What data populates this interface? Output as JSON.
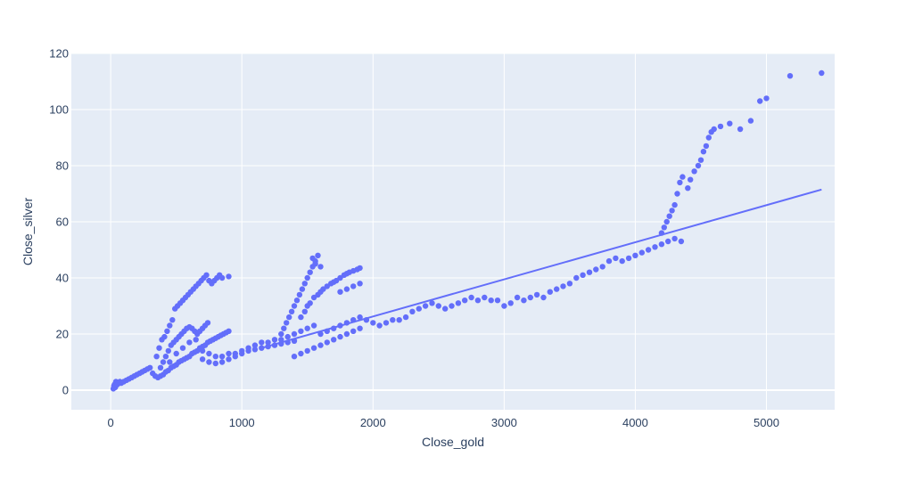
{
  "chart_data": {
    "type": "scatter",
    "xlabel": "Close_gold",
    "ylabel": "Close_silver",
    "xlim": [
      -300,
      5520
    ],
    "ylim": [
      -7,
      120
    ],
    "xticks": [
      "0",
      "1000",
      "2000",
      "3000",
      "4000",
      "5000"
    ],
    "yticks": [
      "0",
      "20",
      "40",
      "60",
      "80",
      "100",
      "120"
    ],
    "grid": true,
    "colors": {
      "background": "#e5ecf6",
      "grid": "#ffffff",
      "marker": "#636efa",
      "line": "#636efa",
      "text": "#2a3f5f"
    },
    "series": [
      {
        "type": "scatter",
        "points": [
          [
            20,
            0.5
          ],
          [
            25,
            1.5
          ],
          [
            30,
            2
          ],
          [
            35,
            1
          ],
          [
            40,
            3
          ],
          [
            50,
            2
          ],
          [
            60,
            2.5
          ],
          [
            70,
            3
          ],
          [
            80,
            2.5
          ],
          [
            100,
            3
          ],
          [
            120,
            3.5
          ],
          [
            140,
            4
          ],
          [
            160,
            4.5
          ],
          [
            180,
            5
          ],
          [
            200,
            5.5
          ],
          [
            220,
            6
          ],
          [
            240,
            6.5
          ],
          [
            260,
            7
          ],
          [
            280,
            7.5
          ],
          [
            300,
            8
          ],
          [
            320,
            6
          ],
          [
            340,
            5
          ],
          [
            360,
            4.5
          ],
          [
            380,
            5
          ],
          [
            400,
            5.5
          ],
          [
            420,
            6.5
          ],
          [
            440,
            7
          ],
          [
            460,
            8
          ],
          [
            480,
            8.5
          ],
          [
            500,
            9
          ],
          [
            520,
            10
          ],
          [
            540,
            10.5
          ],
          [
            560,
            11
          ],
          [
            580,
            11.5
          ],
          [
            600,
            12
          ],
          [
            620,
            13
          ],
          [
            640,
            13.5
          ],
          [
            660,
            14
          ],
          [
            680,
            15
          ],
          [
            700,
            15.5
          ],
          [
            720,
            16
          ],
          [
            740,
            17
          ],
          [
            760,
            17.5
          ],
          [
            780,
            18
          ],
          [
            800,
            18.5
          ],
          [
            820,
            19
          ],
          [
            840,
            19.5
          ],
          [
            860,
            20
          ],
          [
            880,
            20.5
          ],
          [
            900,
            21
          ],
          [
            350,
            12
          ],
          [
            370,
            15
          ],
          [
            390,
            18
          ],
          [
            410,
            19
          ],
          [
            430,
            21
          ],
          [
            450,
            23
          ],
          [
            470,
            25
          ],
          [
            490,
            29
          ],
          [
            510,
            30
          ],
          [
            530,
            31
          ],
          [
            550,
            32
          ],
          [
            570,
            33
          ],
          [
            590,
            34
          ],
          [
            610,
            35
          ],
          [
            630,
            36
          ],
          [
            650,
            37
          ],
          [
            670,
            38
          ],
          [
            690,
            39
          ],
          [
            710,
            40
          ],
          [
            730,
            41
          ],
          [
            750,
            39
          ],
          [
            770,
            38
          ],
          [
            790,
            39
          ],
          [
            810,
            40
          ],
          [
            830,
            41
          ],
          [
            850,
            40
          ],
          [
            900,
            40.5
          ],
          [
            380,
            8
          ],
          [
            400,
            10
          ],
          [
            420,
            12
          ],
          [
            440,
            14
          ],
          [
            460,
            16
          ],
          [
            480,
            17
          ],
          [
            500,
            18
          ],
          [
            520,
            19
          ],
          [
            540,
            20
          ],
          [
            560,
            21
          ],
          [
            580,
            22
          ],
          [
            600,
            22.5
          ],
          [
            620,
            22
          ],
          [
            640,
            21
          ],
          [
            660,
            20
          ],
          [
            680,
            21
          ],
          [
            700,
            22
          ],
          [
            720,
            23
          ],
          [
            740,
            24
          ],
          [
            450,
            10
          ],
          [
            500,
            13
          ],
          [
            550,
            15
          ],
          [
            600,
            17
          ],
          [
            650,
            18
          ],
          [
            700,
            14
          ],
          [
            750,
            13
          ],
          [
            800,
            12
          ],
          [
            850,
            12
          ],
          [
            900,
            13
          ],
          [
            950,
            13
          ],
          [
            1000,
            14
          ],
          [
            700,
            11
          ],
          [
            750,
            10
          ],
          [
            800,
            9.5
          ],
          [
            850,
            10
          ],
          [
            900,
            11
          ],
          [
            950,
            12
          ],
          [
            1000,
            13
          ],
          [
            1050,
            14
          ],
          [
            1100,
            14.5
          ],
          [
            1150,
            15
          ],
          [
            1200,
            15.5
          ],
          [
            1250,
            16
          ],
          [
            1300,
            16.5
          ],
          [
            1350,
            17
          ],
          [
            1400,
            17.5
          ],
          [
            1050,
            15
          ],
          [
            1100,
            16
          ],
          [
            1150,
            17
          ],
          [
            1200,
            17
          ],
          [
            1250,
            18
          ],
          [
            1300,
            18
          ],
          [
            1350,
            19
          ],
          [
            1400,
            20
          ],
          [
            1450,
            21
          ],
          [
            1500,
            22
          ],
          [
            1550,
            23
          ],
          [
            1300,
            20
          ],
          [
            1320,
            22
          ],
          [
            1340,
            24
          ],
          [
            1360,
            26
          ],
          [
            1380,
            28
          ],
          [
            1400,
            30
          ],
          [
            1420,
            32
          ],
          [
            1440,
            34
          ],
          [
            1460,
            36
          ],
          [
            1480,
            38
          ],
          [
            1500,
            40
          ],
          [
            1520,
            42
          ],
          [
            1540,
            44
          ],
          [
            1560,
            46
          ],
          [
            1580,
            48
          ],
          [
            1540,
            47
          ],
          [
            1560,
            45
          ],
          [
            1600,
            44
          ],
          [
            1450,
            26
          ],
          [
            1480,
            28
          ],
          [
            1500,
            30
          ],
          [
            1520,
            31
          ],
          [
            1550,
            33
          ],
          [
            1580,
            34
          ],
          [
            1600,
            35
          ],
          [
            1620,
            36
          ],
          [
            1650,
            37
          ],
          [
            1680,
            38
          ],
          [
            1700,
            38.5
          ],
          [
            1720,
            39
          ],
          [
            1750,
            40
          ],
          [
            1780,
            41
          ],
          [
            1800,
            41.5
          ],
          [
            1820,
            42
          ],
          [
            1850,
            42.5
          ],
          [
            1880,
            43
          ],
          [
            1900,
            43.5
          ],
          [
            1750,
            35
          ],
          [
            1800,
            36
          ],
          [
            1850,
            37
          ],
          [
            1900,
            38
          ],
          [
            1400,
            12
          ],
          [
            1450,
            13
          ],
          [
            1500,
            14
          ],
          [
            1550,
            15
          ],
          [
            1600,
            16
          ],
          [
            1650,
            17
          ],
          [
            1700,
            18
          ],
          [
            1750,
            19
          ],
          [
            1800,
            20
          ],
          [
            1850,
            21
          ],
          [
            1900,
            22
          ],
          [
            1600,
            20
          ],
          [
            1650,
            21
          ],
          [
            1700,
            22
          ],
          [
            1750,
            23
          ],
          [
            1800,
            24
          ],
          [
            1850,
            25
          ],
          [
            1900,
            26
          ],
          [
            1950,
            25
          ],
          [
            2000,
            24
          ],
          [
            2050,
            23
          ],
          [
            2100,
            24
          ],
          [
            2150,
            25
          ],
          [
            2200,
            25
          ],
          [
            2250,
            26
          ],
          [
            2300,
            28
          ],
          [
            2350,
            29
          ],
          [
            2400,
            30
          ],
          [
            2450,
            31
          ],
          [
            2500,
            30
          ],
          [
            2550,
            29
          ],
          [
            2600,
            30
          ],
          [
            2650,
            31
          ],
          [
            2700,
            32
          ],
          [
            2750,
            33
          ],
          [
            2800,
            32
          ],
          [
            2850,
            33
          ],
          [
            2900,
            32
          ],
          [
            2950,
            32
          ],
          [
            3000,
            30
          ],
          [
            3050,
            31
          ],
          [
            3100,
            33
          ],
          [
            3150,
            32
          ],
          [
            3200,
            33
          ],
          [
            3250,
            34
          ],
          [
            3300,
            33
          ],
          [
            3350,
            35
          ],
          [
            3400,
            36
          ],
          [
            3450,
            37
          ],
          [
            3500,
            38
          ],
          [
            3550,
            40
          ],
          [
            3600,
            41
          ],
          [
            3650,
            42
          ],
          [
            3700,
            43
          ],
          [
            3750,
            44
          ],
          [
            3800,
            46
          ],
          [
            3850,
            47
          ],
          [
            3900,
            46
          ],
          [
            3950,
            47
          ],
          [
            4000,
            48
          ],
          [
            4050,
            49
          ],
          [
            4100,
            50
          ],
          [
            4150,
            51
          ],
          [
            4200,
            52
          ],
          [
            4250,
            53
          ],
          [
            4300,
            54
          ],
          [
            4350,
            53
          ],
          [
            4200,
            56
          ],
          [
            4220,
            58
          ],
          [
            4240,
            60
          ],
          [
            4260,
            62
          ],
          [
            4280,
            64
          ],
          [
            4300,
            66
          ],
          [
            4320,
            70
          ],
          [
            4340,
            74
          ],
          [
            4360,
            76
          ],
          [
            4400,
            72
          ],
          [
            4420,
            75
          ],
          [
            4450,
            78
          ],
          [
            4480,
            80
          ],
          [
            4500,
            82
          ],
          [
            4520,
            85
          ],
          [
            4540,
            87
          ],
          [
            4560,
            90
          ],
          [
            4580,
            92
          ],
          [
            4600,
            93
          ],
          [
            4650,
            94
          ],
          [
            4720,
            95
          ],
          [
            4800,
            93
          ],
          [
            4880,
            96
          ],
          [
            4950,
            103
          ],
          [
            5000,
            104
          ],
          [
            5180,
            112
          ],
          [
            5420,
            113
          ]
        ]
      },
      {
        "type": "line",
        "points": [
          [
            1150,
            15
          ],
          [
            5420,
            71.5
          ]
        ]
      }
    ]
  }
}
